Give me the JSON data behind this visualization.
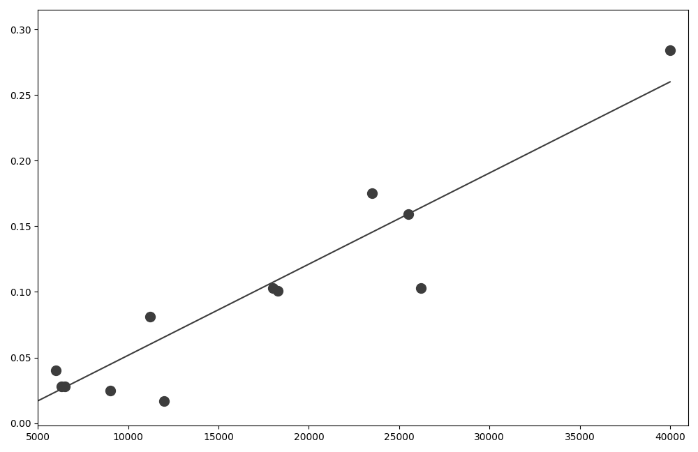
{
  "scatter_x": [
    6000,
    6300,
    6500,
    9000,
    11200,
    12000,
    18000,
    18300,
    23500,
    25500,
    26200,
    40000
  ],
  "scatter_y": [
    0.04,
    0.028,
    0.028,
    0.025,
    0.081,
    0.017,
    0.103,
    0.101,
    0.175,
    0.159,
    0.103,
    0.284
  ],
  "line_x": [
    5000,
    40000
  ],
  "line_y": [
    0.017,
    0.26
  ],
  "xlim": [
    5000,
    41000
  ],
  "ylim": [
    -0.002,
    0.315
  ],
  "xticks": [
    5000,
    10000,
    15000,
    20000,
    25000,
    30000,
    35000,
    40000
  ],
  "yticks": [
    0.0,
    0.05,
    0.1,
    0.15,
    0.2,
    0.25,
    0.3
  ],
  "scatter_color": "#3d3d3d",
  "line_color": "#3d3d3d",
  "marker_size": 100,
  "line_width": 1.5,
  "plot_bg_color": "#ffffff",
  "figure_facecolor": "#ffffff"
}
